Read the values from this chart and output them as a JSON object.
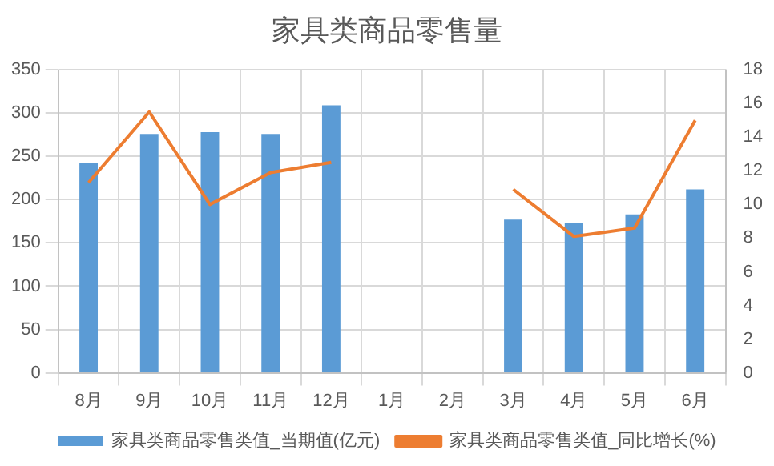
{
  "chart_data": {
    "type": "bar",
    "title": "家具类商品零售量",
    "categories": [
      "8月",
      "9月",
      "10月",
      "11月",
      "12月",
      "1月",
      "2月",
      "3月",
      "4月",
      "5月",
      "6月"
    ],
    "series": [
      {
        "name": "家具类商品零售类值_当期值(亿元)",
        "color": "#5b9bd5",
        "values": [
          243,
          276,
          278,
          276,
          309,
          null,
          null,
          177,
          173,
          183,
          212
        ]
      },
      {
        "name": "家具类商品零售类值_同比增长(%)",
        "type": "line",
        "axis": "y2",
        "color": "#ed7d31",
        "values": [
          11.3,
          15.5,
          10.0,
          11.9,
          12.5,
          null,
          null,
          10.9,
          8.1,
          8.6,
          15.0
        ]
      }
    ],
    "ylim": [
      0,
      350
    ],
    "yticks": [
      0,
      50,
      100,
      150,
      200,
      250,
      300,
      350
    ],
    "y2lim": [
      0,
      18
    ],
    "y2ticks": [
      0,
      2,
      4,
      6,
      8,
      10,
      12,
      14,
      16,
      18
    ],
    "grid": true,
    "legend": "bottom",
    "marker": "none"
  }
}
